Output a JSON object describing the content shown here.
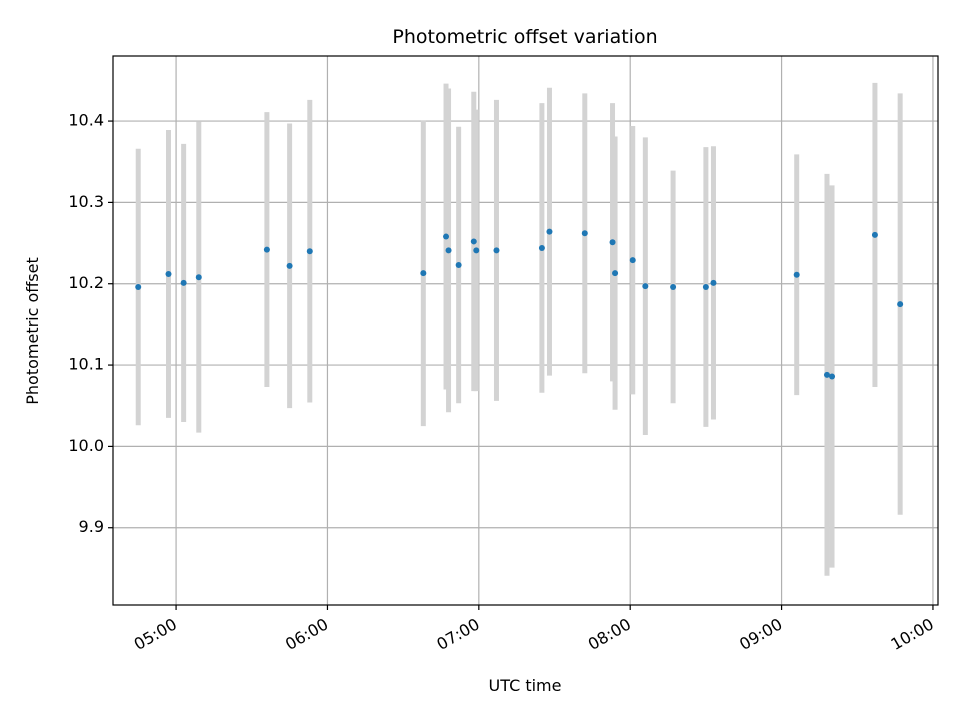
{
  "chart_data": {
    "type": "scatter",
    "title": "Photometric offset variation",
    "xlabel": "UTC time",
    "ylabel": "Photometric offset",
    "xlim": [
      "04:35",
      "10:02"
    ],
    "ylim": [
      9.805,
      10.48
    ],
    "x_ticks": [
      "05:00",
      "06:00",
      "07:00",
      "08:00",
      "09:00",
      "10:00"
    ],
    "y_ticks": [
      9.9,
      10.0,
      10.1,
      10.2,
      10.3,
      10.4
    ],
    "grid": true,
    "marker_color": "#1f77b4",
    "errorbar_color": "#d3d3d3",
    "points": [
      {
        "x": "04:45",
        "y": 10.196,
        "err": 0.17
      },
      {
        "x": "04:57",
        "y": 10.212,
        "err": 0.177
      },
      {
        "x": "05:03",
        "y": 10.201,
        "err": 0.171
      },
      {
        "x": "05:09",
        "y": 10.208,
        "err": 0.191
      },
      {
        "x": "05:36",
        "y": 10.242,
        "err": 0.169
      },
      {
        "x": "05:45",
        "y": 10.222,
        "err": 0.175
      },
      {
        "x": "05:53",
        "y": 10.24,
        "err": 0.186
      },
      {
        "x": "06:38",
        "y": 10.213,
        "err": 0.188
      },
      {
        "x": "06:47",
        "y": 10.258,
        "err": 0.188
      },
      {
        "x": "06:48",
        "y": 10.241,
        "err": 0.199
      },
      {
        "x": "06:52",
        "y": 10.223,
        "err": 0.17
      },
      {
        "x": "06:58",
        "y": 10.252,
        "err": 0.184
      },
      {
        "x": "06:59",
        "y": 10.241,
        "err": 0.173
      },
      {
        "x": "07:07",
        "y": 10.241,
        "err": 0.185
      },
      {
        "x": "07:25",
        "y": 10.244,
        "err": 0.178
      },
      {
        "x": "07:28",
        "y": 10.264,
        "err": 0.177
      },
      {
        "x": "07:42",
        "y": 10.262,
        "err": 0.172
      },
      {
        "x": "07:53",
        "y": 10.251,
        "err": 0.171
      },
      {
        "x": "07:54",
        "y": 10.213,
        "err": 0.168
      },
      {
        "x": "08:01",
        "y": 10.229,
        "err": 0.165
      },
      {
        "x": "08:06",
        "y": 10.197,
        "err": 0.183
      },
      {
        "x": "08:17",
        "y": 10.196,
        "err": 0.143
      },
      {
        "x": "08:30",
        "y": 10.196,
        "err": 0.172
      },
      {
        "x": "08:33",
        "y": 10.201,
        "err": 0.168
      },
      {
        "x": "09:06",
        "y": 10.211,
        "err": 0.148
      },
      {
        "x": "09:18",
        "y": 10.088,
        "err": 0.247
      },
      {
        "x": "09:20",
        "y": 10.086,
        "err": 0.235
      },
      {
        "x": "09:37",
        "y": 10.26,
        "err": 0.187
      },
      {
        "x": "09:47",
        "y": 10.175,
        "err": 0.259
      }
    ]
  }
}
